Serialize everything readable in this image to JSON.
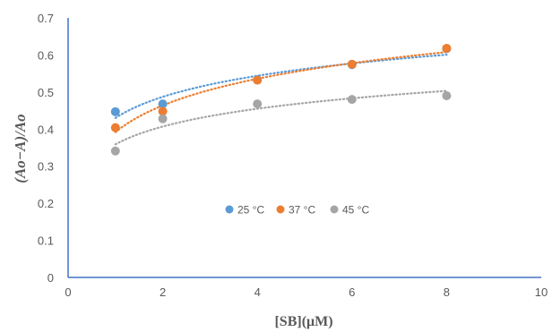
{
  "chart_data": {
    "type": "scatter",
    "xlabel": "[SB](μM)",
    "ylabel": "(Ao−A)/Ao",
    "xlim": [
      0,
      10
    ],
    "ylim": [
      0,
      0.7
    ],
    "xticks": [
      "0",
      "2",
      "4",
      "6",
      "8",
      "10"
    ],
    "yticks": [
      "0",
      "0.1",
      "0.2",
      "0.3",
      "0.4",
      "0.5",
      "0.6",
      "0.7"
    ],
    "grid": false,
    "legend_position": "center",
    "trendline": "logarithmic, dotted",
    "series": [
      {
        "name": "25 °C",
        "color": "#5B9BD5",
        "x": [
          1,
          2,
          4,
          6,
          8
        ],
        "y": [
          0.447,
          0.468,
          0.533,
          0.574,
          0.617
        ]
      },
      {
        "name": "37 °C",
        "color": "#ED7D31",
        "x": [
          1,
          2,
          4,
          6,
          8
        ],
        "y": [
          0.404,
          0.448,
          0.532,
          0.575,
          0.618
        ]
      },
      {
        "name": "45 °C",
        "color": "#A5A5A5",
        "x": [
          1,
          2,
          4,
          6,
          8
        ],
        "y": [
          0.341,
          0.428,
          0.468,
          0.48,
          0.49
        ]
      }
    ]
  }
}
